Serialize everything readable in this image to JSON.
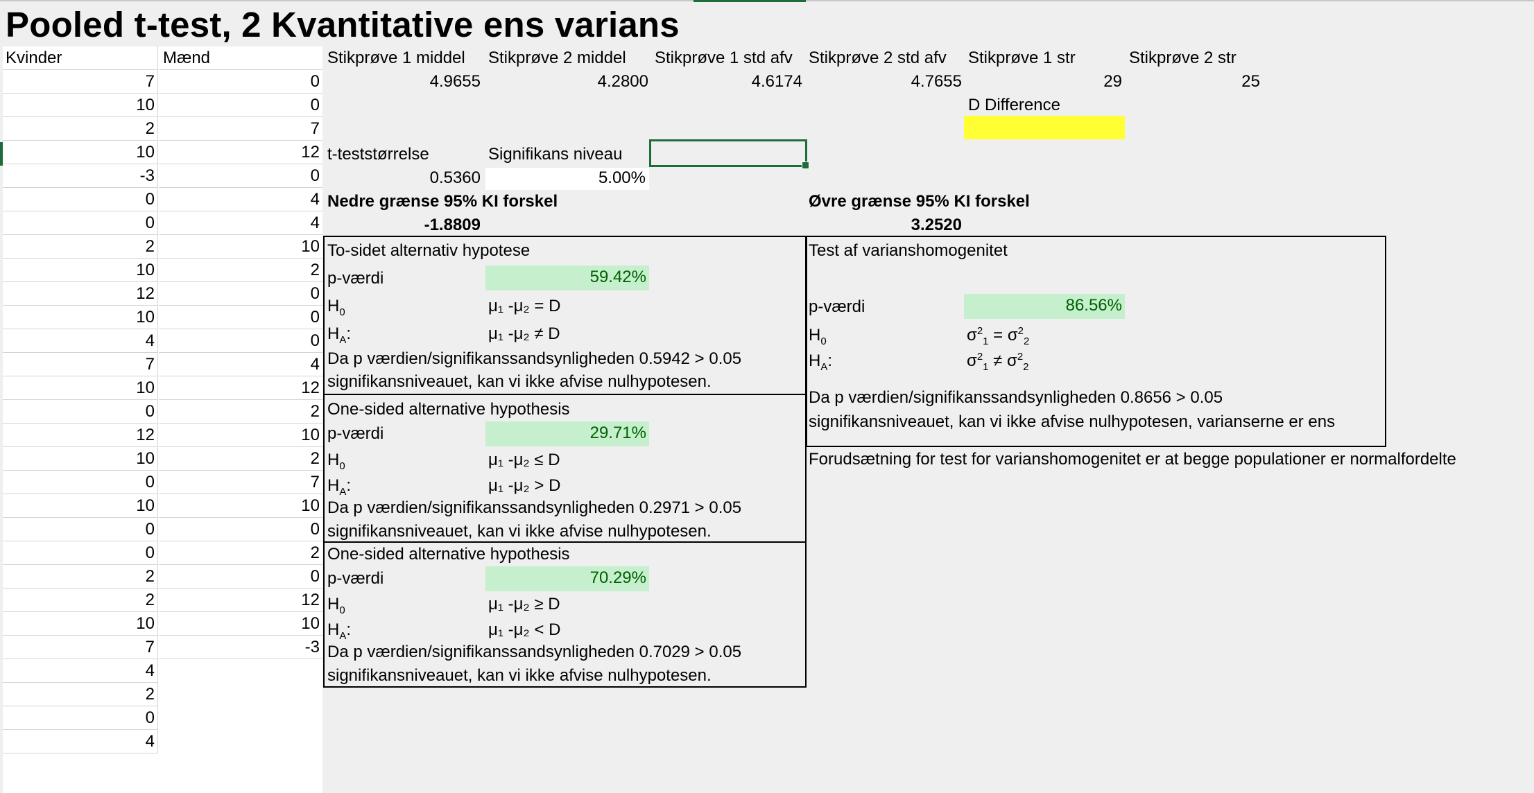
{
  "title": "Pooled t-test, 2 Kvantitative ens varians",
  "columns": {
    "kvinder": "Kvinder",
    "maend": "Mænd"
  },
  "kvinder": [
    "7",
    "10",
    "2",
    "10",
    "-3",
    "0",
    "0",
    "2",
    "10",
    "12",
    "10",
    "4",
    "7",
    "10",
    "0",
    "12",
    "10",
    "0",
    "10",
    "0",
    "0",
    "2",
    "2",
    "10",
    "7",
    "4",
    "2",
    "0",
    "4"
  ],
  "maend": [
    "0",
    "0",
    "7",
    "12",
    "0",
    "4",
    "4",
    "10",
    "2",
    "0",
    "0",
    "0",
    "4",
    "12",
    "2",
    "10",
    "2",
    "7",
    "10",
    "0",
    "2",
    "0",
    "12",
    "10",
    "-3"
  ],
  "stats": {
    "s1_mean_label": "Stikprøve 1 middel",
    "s1_mean": "4.9655",
    "s2_mean_label": "Stikprøve 2 middel",
    "s2_mean": "4.2800",
    "s1_sd_label": "Stikprøve 1 std afv",
    "s1_sd": "4.6174",
    "s2_sd_label": "Stikprøve 2 std afv",
    "s2_sd": "4.7655",
    "s1_n_label": "Stikprøve 1 str",
    "s1_n": "29",
    "s2_n_label": "Stikprøve 2 str",
    "s2_n": "25",
    "d_label": "D Difference",
    "t_label": "t-teststørrelse",
    "t_value": "0.5360",
    "sig_label": "Signifikans niveau",
    "sig_value": "5.00%",
    "ci_low_label": "Nedre grænse 95% KI forskel",
    "ci_low": "-1.8809",
    "ci_high_label": "Øvre grænse 95% KI forskel",
    "ci_high": "3.2520"
  },
  "two_sided": {
    "heading": "To-sidet alternativ hypotese",
    "p_label": "p-værdi",
    "p_value": "59.42%",
    "h0_main": "H",
    "h0_sub": "0",
    "h0_expr": "μ₁ -μ₂ = D",
    "ha_main": "H",
    "ha_sub": "A",
    "ha_colon": ":",
    "ha_expr": "μ₁ -μ₂ ≠ D",
    "conclusion1": "Da p værdien/signifikanssandsynligheden 0.5942 > 0.05",
    "conclusion2": "signifikansniveauet, kan vi ikke afvise nulhypotesen."
  },
  "one_sided_greater": {
    "heading": "One-sided alternative hypothesis",
    "p_label": "p-værdi",
    "p_value": "29.71%",
    "h0_expr": "μ₁ -μ₂ ≤ D",
    "ha_expr": "μ₁ -μ₂ > D",
    "conclusion1": "Da p værdien/signifikanssandsynligheden 0.2971 > 0.05",
    "conclusion2": "signifikansniveauet, kan vi ikke afvise nulhypotesen."
  },
  "one_sided_less": {
    "heading": "One-sided alternative hypothesis",
    "p_label": "p-værdi",
    "p_value": "70.29%",
    "h0_expr": "μ₁ -μ₂ ≥ D",
    "ha_expr": "μ₁ -μ₂ < D",
    "conclusion1": "Da p værdien/signifikanssandsynligheden 0.7029 > 0.05",
    "conclusion2": "signifikansniveauet, kan vi ikke afvise nulhypotesen."
  },
  "variance_test": {
    "heading": "Test af varianshomogenitet",
    "p_label": "p-værdi",
    "p_value": "86.56%",
    "sigma": "σ",
    "sq": "2",
    "one": "1",
    "two": "2",
    "eq": " = ",
    "neq": " ≠ ",
    "conclusion1": "Da p værdien/signifikanssandsynligheden 0.8656 > 0.05",
    "conclusion2": "signifikansniveauet, kan vi ikke afvise nulhypotesen, varianserne er ens",
    "assumption": "Forudsætning for test for varianshomogenitet er at begge populationer er normalfordelte"
  }
}
